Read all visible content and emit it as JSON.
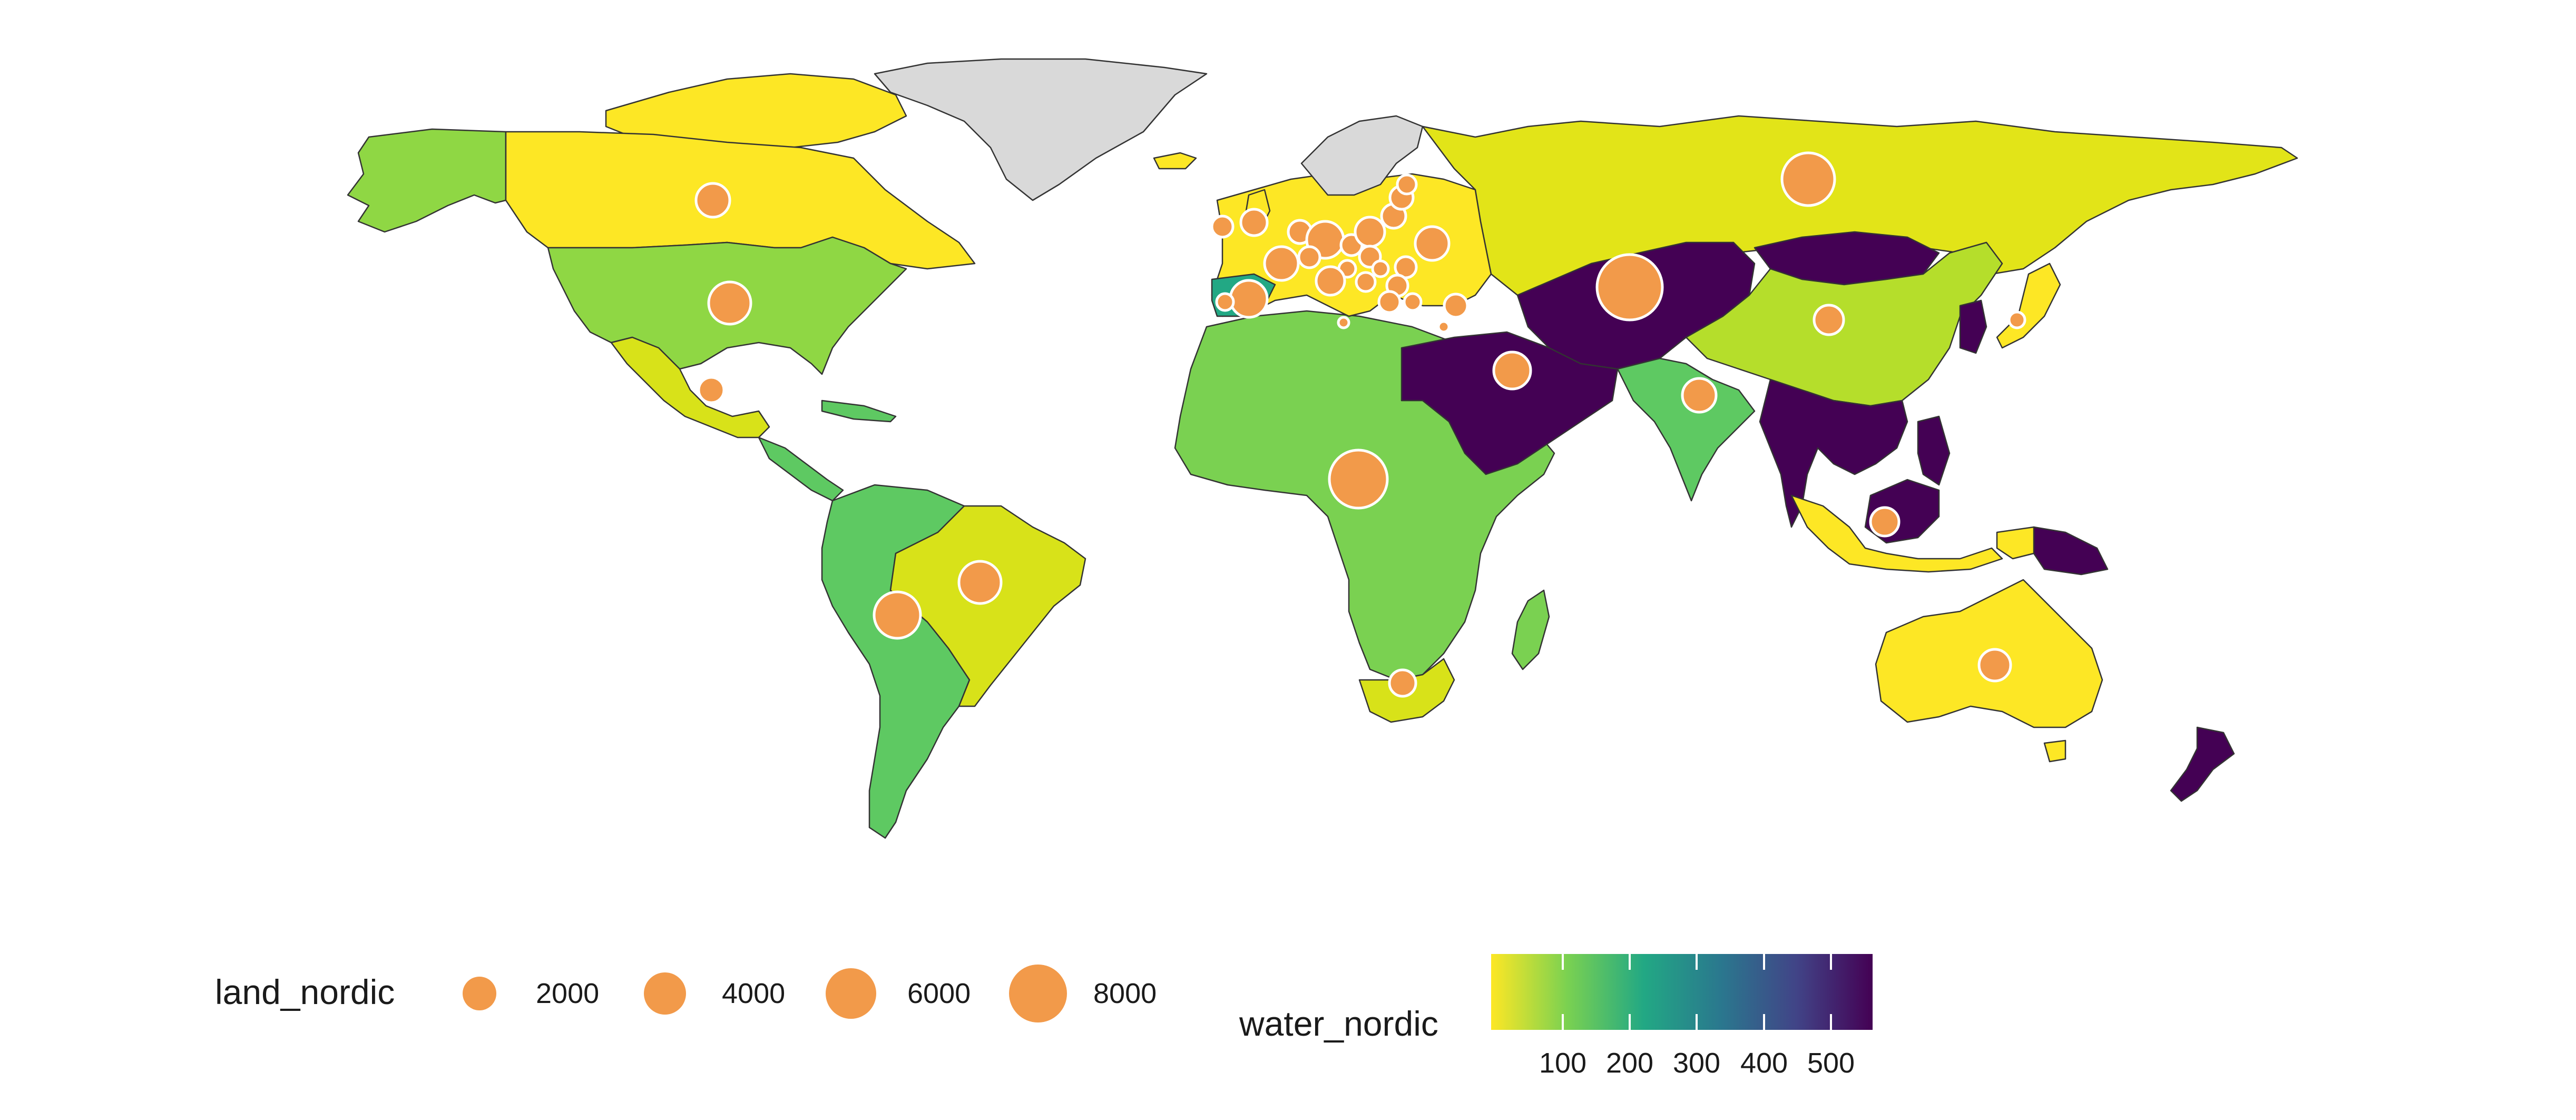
{
  "map": {
    "type": "choropleth-with-proportional-symbols",
    "fill_variable": "water_nordic",
    "size_variable": "land_nordic",
    "no_data_color": "#d9d9d9",
    "border_color": "#333333",
    "bubble_color": "#f29a4a",
    "bubble_stroke": "#ffffff",
    "regions": [
      {
        "name": "Canada",
        "level": "low"
      },
      {
        "name": "Alaska",
        "level": "mid-low"
      },
      {
        "name": "United States",
        "level": "mid-low"
      },
      {
        "name": "Mexico",
        "level": "low"
      },
      {
        "name": "Central America",
        "level": "mid"
      },
      {
        "name": "Greenland",
        "level": "no-data"
      },
      {
        "name": "Brazil",
        "level": "low"
      },
      {
        "name": "Western South America",
        "level": "mid"
      },
      {
        "name": "Africa",
        "level": "mid"
      },
      {
        "name": "Madagascar",
        "level": "mid"
      },
      {
        "name": "South Africa",
        "level": "low"
      },
      {
        "name": "Europe",
        "level": "low"
      },
      {
        "name": "Russia",
        "level": "low"
      },
      {
        "name": "China",
        "level": "mid-low"
      },
      {
        "name": "India",
        "level": "mid"
      },
      {
        "name": "Middle East",
        "level": "high"
      },
      {
        "name": "Central Asia",
        "level": "high"
      },
      {
        "name": "Mongolia",
        "level": "high"
      },
      {
        "name": "Southeast Asia",
        "level": "high"
      },
      {
        "name": "Indonesia",
        "level": "low"
      },
      {
        "name": "Papua New Guinea",
        "level": "high"
      },
      {
        "name": "Australia",
        "level": "low"
      },
      {
        "name": "New Zealand",
        "level": "high"
      },
      {
        "name": "Japan",
        "level": "low"
      },
      {
        "name": "Scandinavia",
        "level": "no-data"
      }
    ]
  },
  "legend_size": {
    "title": "land_nordic",
    "entries": [
      {
        "label": "2000",
        "value": 2000
      },
      {
        "label": "4000",
        "value": 4000
      },
      {
        "label": "6000",
        "value": 6000
      },
      {
        "label": "8000",
        "value": 8000
      }
    ]
  },
  "legend_color": {
    "title": "water_nordic",
    "min": 30,
    "max": 560,
    "ticks": [
      {
        "label": "100",
        "value": 100
      },
      {
        "label": "200",
        "value": 200
      },
      {
        "label": "300",
        "value": 300
      },
      {
        "label": "400",
        "value": 400
      },
      {
        "label": "500",
        "value": 500
      }
    ],
    "palette": [
      "#fde725",
      "#7ad151",
      "#22a884",
      "#2a788e",
      "#414487",
      "#440154"
    ]
  }
}
